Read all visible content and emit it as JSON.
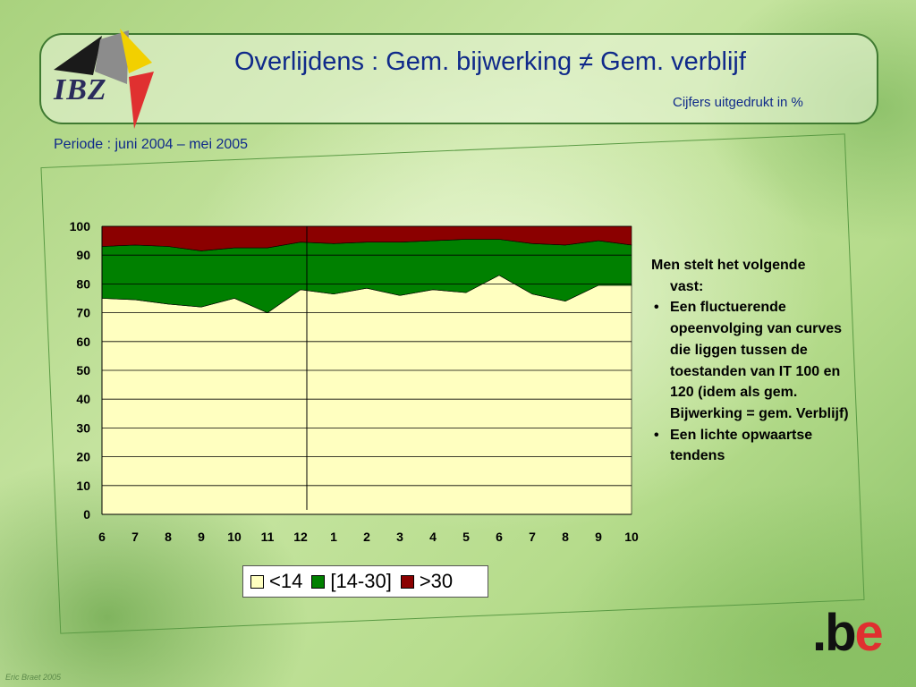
{
  "header": {
    "logo_text": "IBZ",
    "title": "Overlijdens : Gem. bijwerking ≠ Gem. verblijf",
    "subtitle": "Cijfers uitgedrukt in %"
  },
  "period": "Periode : juni 2004 – mei 2005",
  "chart_data": {
    "type": "area",
    "stacked": true,
    "categories": [
      "6",
      "7",
      "8",
      "9",
      "10",
      "11",
      "12",
      "1",
      "2",
      "3",
      "4",
      "5",
      "6",
      "7",
      "8",
      "9",
      "10"
    ],
    "ylim": [
      0,
      100
    ],
    "yticks": [
      0,
      10,
      20,
      30,
      40,
      50,
      60,
      70,
      80,
      90,
      100
    ],
    "grid": true,
    "legend_position": "bottom",
    "vertical_marker_after_category_index": 6,
    "series": [
      {
        "name": "<14",
        "color": "#ffffc0",
        "values": [
          75,
          74.5,
          73,
          72,
          75,
          70,
          78,
          76.5,
          78.5,
          76,
          78,
          77,
          83,
          76.5,
          74,
          79.5,
          79.5
        ]
      },
      {
        "name": "[14-30]",
        "color": "#008000",
        "values": [
          18,
          19,
          20,
          19.5,
          17.5,
          22.5,
          16.5,
          17.5,
          16,
          18.5,
          17,
          18.5,
          12.5,
          17.5,
          19.5,
          15.5,
          14
        ]
      },
      {
        "name": ">30",
        "color": "#8b0000",
        "values": [
          7,
          6.5,
          7,
          8.5,
          7.5,
          7.5,
          5.5,
          6,
          5.5,
          5.5,
          5,
          4.5,
          4.5,
          6,
          6.5,
          5,
          6.5
        ]
      }
    ]
  },
  "legend": [
    {
      "label": "<14",
      "color": "#ffffc0"
    },
    {
      "label": "[14-30]",
      "color": "#008000"
    },
    {
      "label": ">30",
      "color": "#8b0000"
    }
  ],
  "notes": {
    "lead_line1": "Men stelt het volgende",
    "lead_line2": "vast:",
    "bullets": [
      "Een fluctuerende opeenvolging van curves die liggen tussen de toestanden van IT 100 en 120 (idem als gem. Bijwerking = gem. Verblijf)",
      "Een lichte opwaartse tendens"
    ]
  },
  "footer": {
    "be_logo": ".be",
    "copyright": "Eric Braet 2005"
  }
}
